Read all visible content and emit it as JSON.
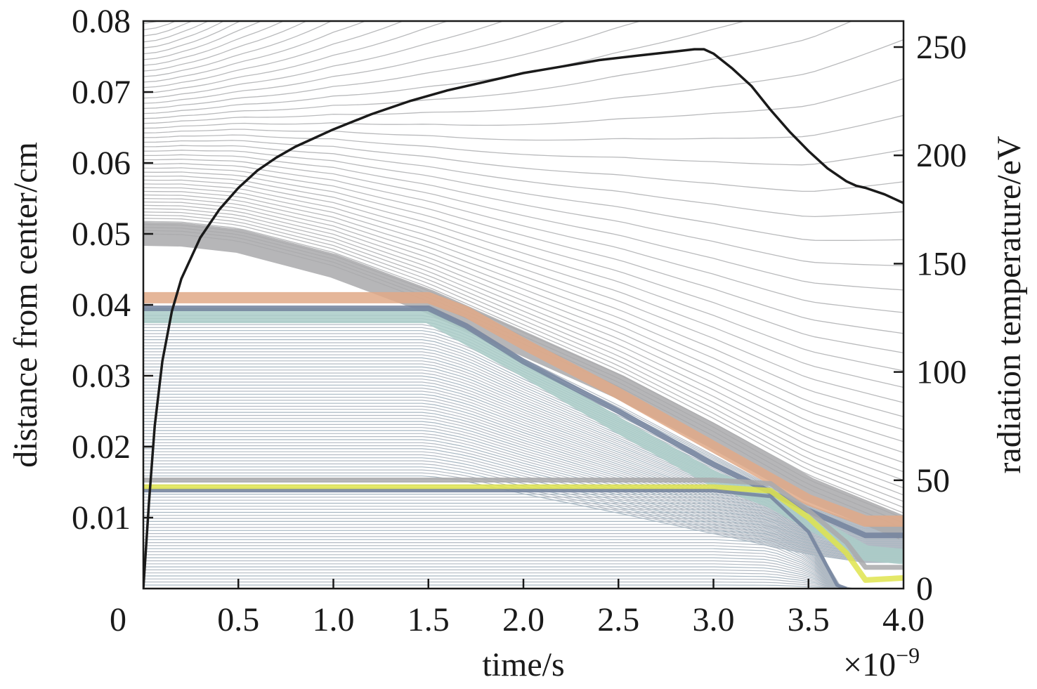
{
  "chart_data": {
    "type": "line",
    "title": "",
    "xlabel": "time/s",
    "x_multiplier": "×10⁻⁹",
    "x_multiplier_base": "×10",
    "x_multiplier_exp": "−9",
    "ylabel_left": "distance from center/cm",
    "ylabel_right": "radiation temperature/eV",
    "xlim": [
      0,
      4.0
    ],
    "ylim_left": [
      0,
      0.08
    ],
    "ylim_right": [
      0,
      262
    ],
    "x_ticks": [
      "0",
      "0.5",
      "1.0",
      "1.5",
      "2.0",
      "2.5",
      "3.0",
      "3.5",
      "4.0"
    ],
    "y_left_ticks": [
      "0.01",
      "0.02",
      "0.03",
      "0.04",
      "0.05",
      "0.06",
      "0.07",
      "0.08"
    ],
    "y_right_ticks": [
      "0",
      "50",
      "100",
      "150",
      "200",
      "250"
    ],
    "grid": false,
    "legend": "none",
    "series": [
      {
        "axis": "right",
        "color": "#1a1a1a",
        "x": [
          0.0,
          0.03,
          0.06,
          0.1,
          0.15,
          0.2,
          0.3,
          0.4,
          0.5,
          0.6,
          0.7,
          0.8,
          1.0,
          1.2,
          1.4,
          1.6,
          1.8,
          2.0,
          2.2,
          2.4,
          2.6,
          2.8,
          2.9,
          2.95,
          3.0,
          3.1,
          3.2,
          3.3,
          3.4,
          3.5,
          3.6,
          3.7,
          3.75,
          3.8,
          3.9,
          4.0
        ],
        "y": [
          0,
          40,
          75,
          105,
          128,
          143,
          162,
          175,
          185,
          193,
          199,
          204,
          212,
          219,
          225,
          230,
          234,
          238,
          241,
          244,
          246,
          248,
          249,
          249,
          247,
          240,
          232,
          221,
          211,
          202,
          194,
          188,
          186,
          185,
          182,
          178
        ]
      },
      {
        "axis": "left",
        "color": "#a9a9ab",
        "x": [
          0.0,
          0.2,
          0.5,
          1.0,
          1.5,
          2.0,
          2.5,
          3.0,
          3.5,
          4.0
        ],
        "y": [
          0.05,
          0.0499,
          0.049,
          0.0455,
          0.0405,
          0.0345,
          0.0285,
          0.0215,
          0.014,
          0.0085
        ]
      },
      {
        "axis": "left",
        "color": "#e0a987",
        "x": [
          0.0,
          1.0,
          1.5,
          1.7,
          2.0,
          2.5,
          3.0,
          3.5,
          3.8,
          4.0
        ],
        "y": [
          0.041,
          0.041,
          0.041,
          0.039,
          0.0345,
          0.0275,
          0.02,
          0.0125,
          0.0095,
          0.0095
        ]
      },
      {
        "axis": "left",
        "color": "#73839e",
        "x": [
          0.0,
          1.0,
          1.5,
          1.7,
          2.0,
          2.5,
          3.0,
          3.5,
          3.8,
          4.0
        ],
        "y": [
          0.0395,
          0.0395,
          0.0395,
          0.037,
          0.032,
          0.025,
          0.0175,
          0.011,
          0.0075,
          0.0075
        ]
      },
      {
        "axis": "left",
        "color": "#aacdc8",
        "x": [
          0.0,
          1.0,
          1.5,
          2.0,
          2.5,
          3.0,
          3.3,
          3.5,
          3.8,
          4.0
        ],
        "y": [
          0.0385,
          0.0385,
          0.0385,
          0.031,
          0.023,
          0.0155,
          0.0125,
          0.0095,
          0.005,
          0.0045
        ]
      },
      {
        "axis": "left",
        "color": "#a9a9ab",
        "x": [
          0.0,
          1.0,
          2.0,
          3.0,
          3.3,
          3.5,
          3.7,
          3.8,
          4.0
        ],
        "y": [
          0.0153,
          0.0153,
          0.0153,
          0.0153,
          0.0148,
          0.011,
          0.0065,
          0.003,
          0.003
        ]
      },
      {
        "axis": "left",
        "color": "#dfe44e",
        "x": [
          0.0,
          1.0,
          2.0,
          3.0,
          3.3,
          3.5,
          3.7,
          3.8,
          4.0
        ],
        "y": [
          0.0143,
          0.0143,
          0.0143,
          0.0143,
          0.0138,
          0.01,
          0.005,
          0.0012,
          0.0015
        ]
      },
      {
        "axis": "left",
        "color": "#73839e",
        "x": [
          0.0,
          1.0,
          2.0,
          3.0,
          3.3,
          3.5,
          3.6,
          3.65,
          3.7
        ],
        "y": [
          0.0138,
          0.0138,
          0.0138,
          0.0138,
          0.013,
          0.008,
          0.003,
          0.0005,
          0.0
        ]
      }
    ]
  }
}
